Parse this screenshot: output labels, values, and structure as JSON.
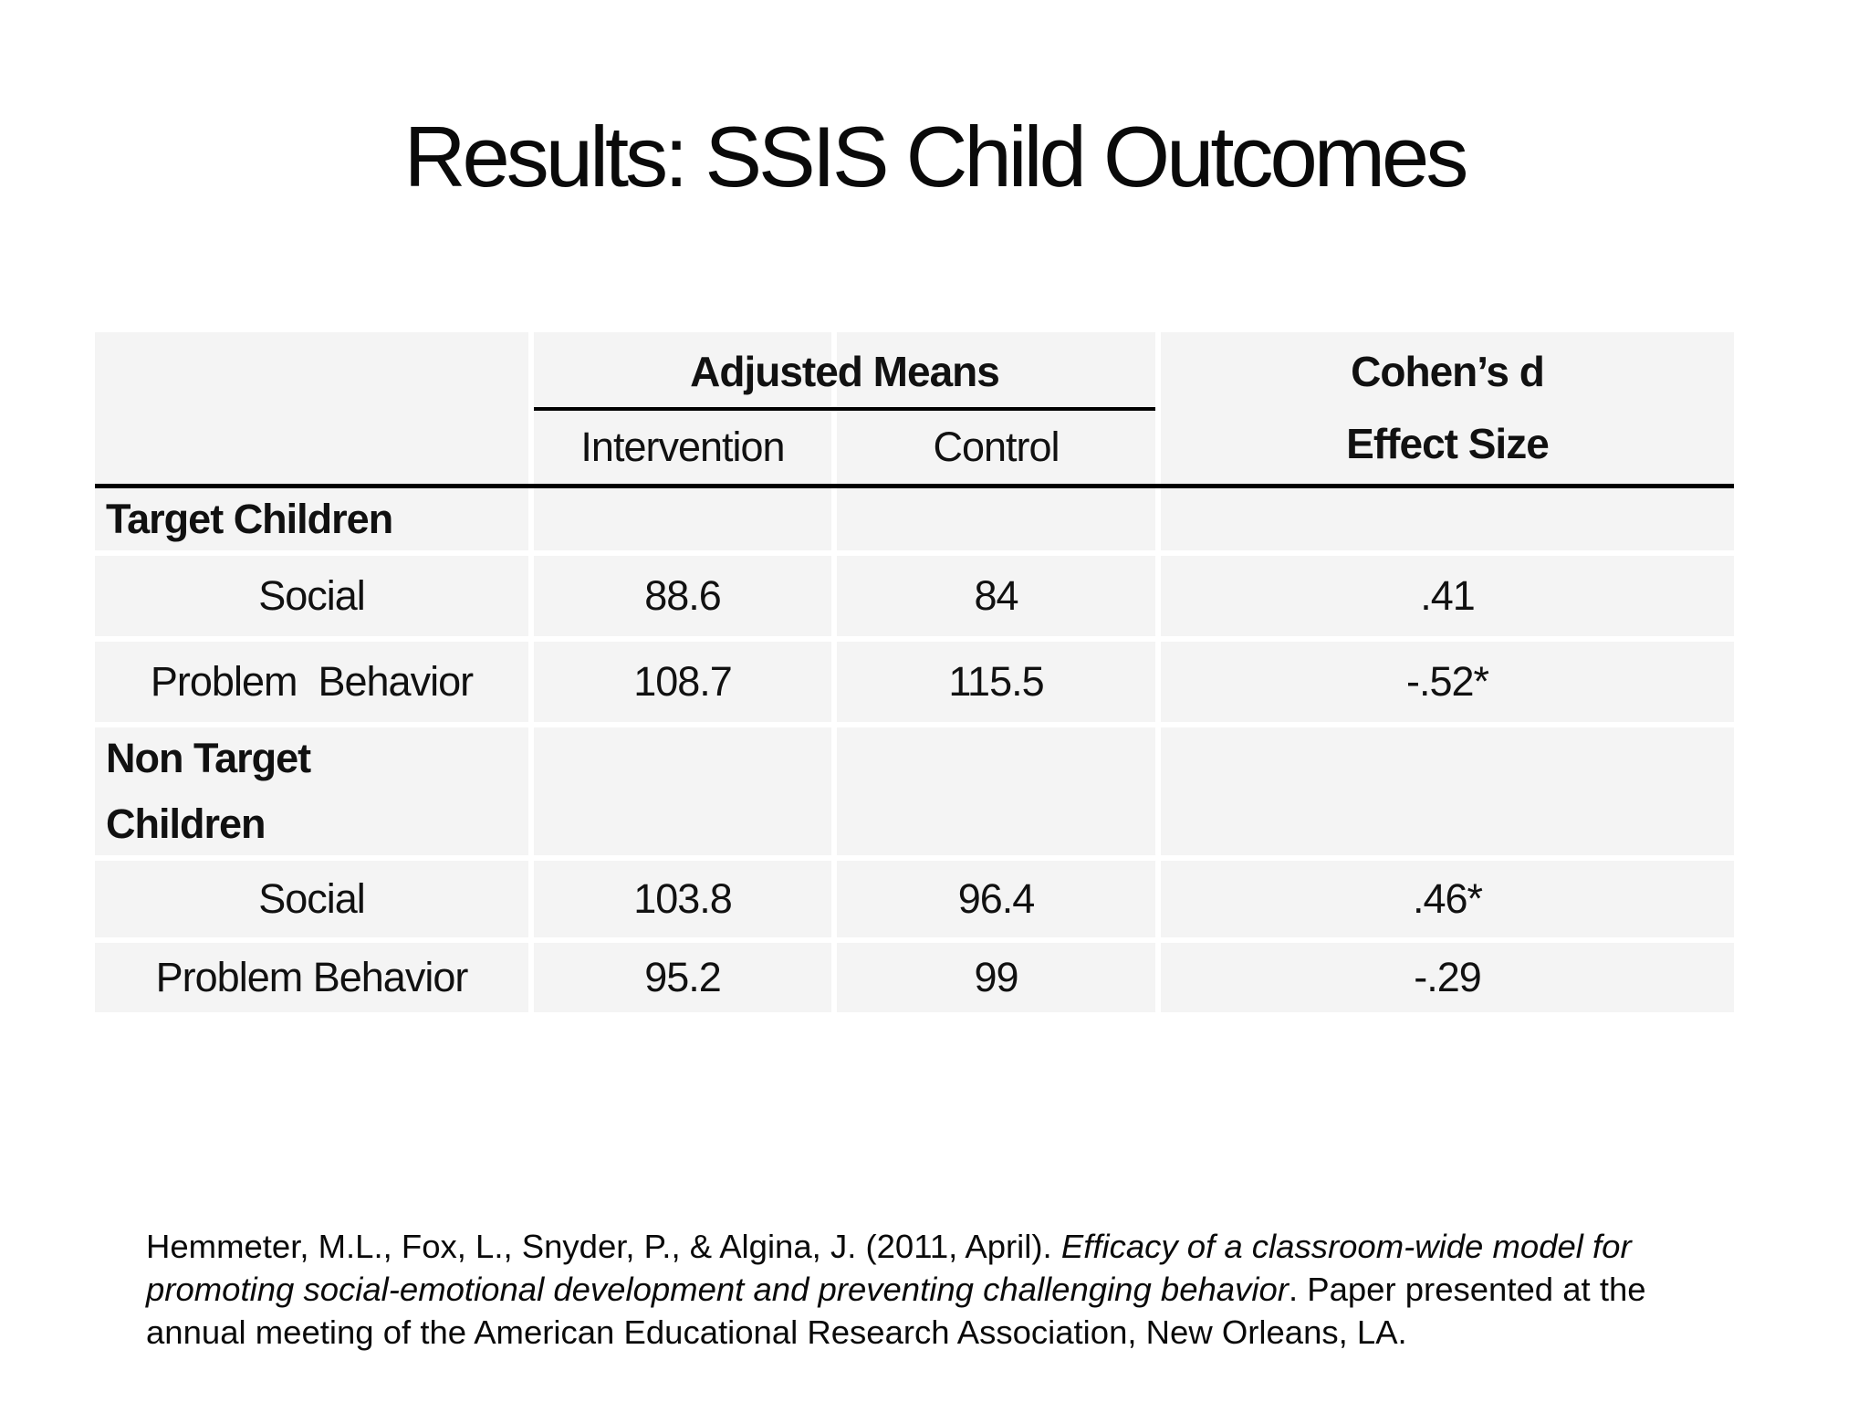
{
  "slide_title": "Results: SSIS Child Outcomes",
  "table": {
    "header": {
      "adjusted_means": "Adjusted Means",
      "intervention": "Intervention",
      "control": "Control",
      "cohens_d": "Cohen’s d",
      "effect_size": "Effect Size"
    },
    "rows": [
      {
        "label": "Target Children"
      },
      {
        "label": "Social",
        "intervention": "88.6",
        "control": "84",
        "effect": ".41"
      },
      {
        "label": "Problem  Behavior",
        "intervention": "108.7",
        "control": "115.5",
        "effect": "-.52*"
      },
      {
        "label": "Non Target\nChildren"
      },
      {
        "label": "Social",
        "intervention": "103.8",
        "control": "96.4",
        "effect": ".46*"
      },
      {
        "label": "Problem Behavior",
        "intervention": "95.2",
        "control": "99",
        "effect": "-.29"
      }
    ]
  },
  "citation": {
    "before_italic": "Hemmeter, M.L., Fox, L., Snyder, P., & Algina, J. (2011, April). ",
    "italic": "Efficacy of a classroom-wide model for promoting social-emotional development and preventing challenging behavior",
    "after_italic": ". Paper presented at the annual meeting of the American Educational Research Association, New Orleans, LA."
  },
  "colors": {
    "background": "#ffffff",
    "cell_fill": "#f4f4f4",
    "rule": "#000000",
    "text": "#111111"
  }
}
